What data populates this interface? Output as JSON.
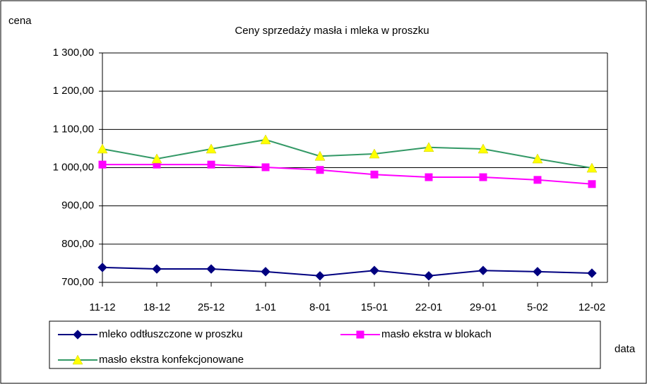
{
  "chart_data": {
    "type": "line",
    "title": "Ceny sprzedaży masła i mleka w proszku",
    "y_label": "cena",
    "x_label": "data",
    "categories": [
      "11-12",
      "18-12",
      "25-12",
      "1-01",
      "8-01",
      "15-01",
      "22-01",
      "29-01",
      "5-02",
      "12-02"
    ],
    "series": [
      {
        "name": "mleko odtłuszczone w proszku",
        "color": "#000080",
        "marker": "diamond",
        "values": [
          739,
          735,
          735,
          728,
          717,
          731,
          717,
          731,
          728,
          724
        ]
      },
      {
        "name": "masło ekstra w blokach",
        "color": "#ff00ff",
        "marker": "square",
        "values": [
          1008,
          1008,
          1008,
          1001,
          994,
          982,
          975,
          975,
          968,
          957
        ]
      },
      {
        "name": "masło ekstra konfekcjonowane",
        "color": "#339966",
        "marker_color": "#ffff00",
        "marker": "triangle",
        "values": [
          1049,
          1023,
          1049,
          1073,
          1030,
          1036,
          1053,
          1049,
          1023,
          999
        ]
      }
    ],
    "ylim": [
      700,
      1300
    ],
    "yticks": [
      {
        "value": 700,
        "label": "700,00"
      },
      {
        "value": 800,
        "label": "800,00"
      },
      {
        "value": 900,
        "label": "900,00"
      },
      {
        "value": 1000,
        "label": "1 000,00"
      },
      {
        "value": 1100,
        "label": "1 100,00"
      },
      {
        "value": 1200,
        "label": "1 200,00"
      },
      {
        "value": 1300,
        "label": "1 300,00"
      }
    ],
    "grid": true
  }
}
